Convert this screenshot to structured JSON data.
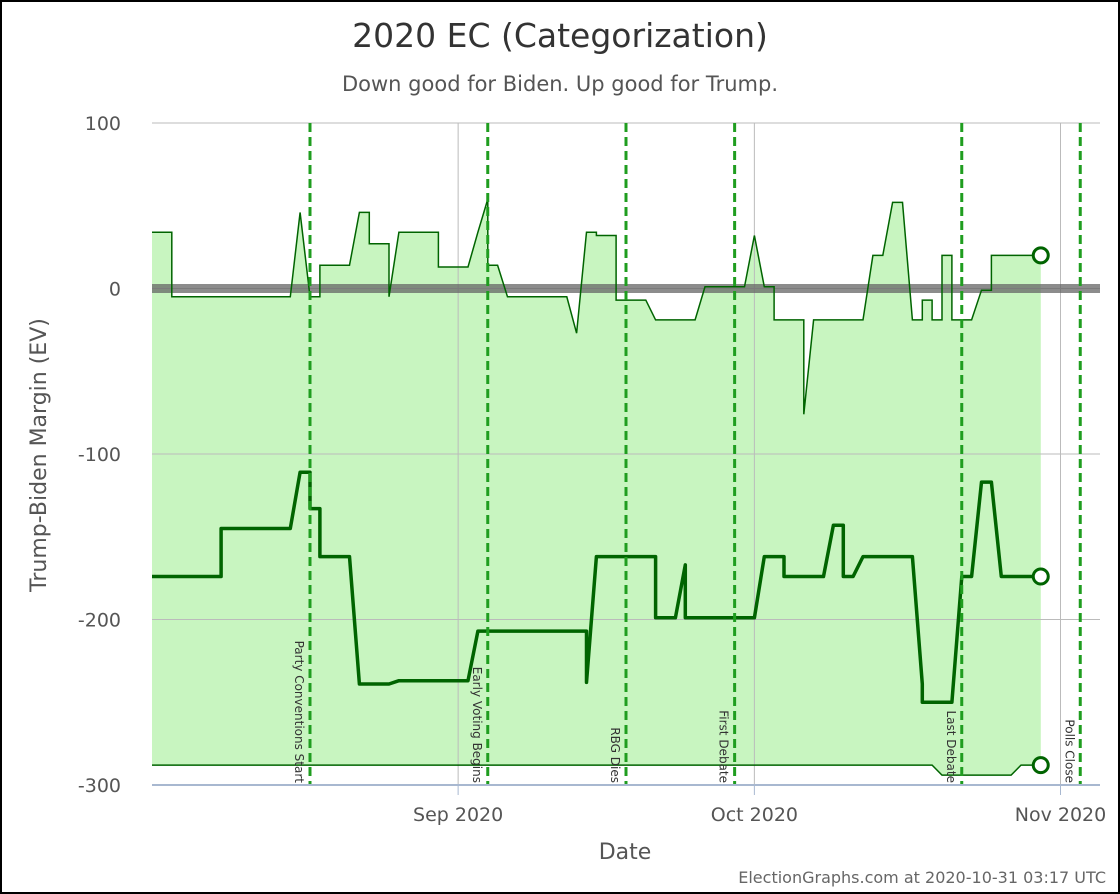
{
  "chart_data": {
    "type": "line",
    "title": "2020 EC (Categorization)",
    "subtitle": "Down good for Biden. Up good for Trump.",
    "xlabel": "Date",
    "ylabel": "Trump-Biden Margin (EV)",
    "ylim": [
      -300,
      100
    ],
    "xlim": [
      "2020-08-01",
      "2020-11-05"
    ],
    "y_ticks": [
      {
        "value": 100,
        "label": "100"
      },
      {
        "value": 0,
        "label": "0"
      },
      {
        "value": -100,
        "label": "-100"
      },
      {
        "value": -200,
        "label": "-200"
      },
      {
        "value": -300,
        "label": "-300"
      }
    ],
    "x_ticks": [
      {
        "date": "2020-09-01",
        "label": "Sep 2020"
      },
      {
        "date": "2020-10-01",
        "label": "Oct 2020"
      },
      {
        "date": "2020-11-01",
        "label": "Nov 2020"
      }
    ],
    "grid": true,
    "zero_line": 0,
    "events": [
      {
        "date": "2020-08-17",
        "label": "Party Conventions Start"
      },
      {
        "date": "2020-09-04",
        "label": "Early Voting Begins"
      },
      {
        "date": "2020-09-18",
        "label": "RBG Dies"
      },
      {
        "date": "2020-09-29",
        "label": "First Debate"
      },
      {
        "date": "2020-10-22",
        "label": "Last Debate"
      },
      {
        "date": "2020-11-03",
        "label": "Polls Close"
      }
    ],
    "series": [
      {
        "role": "upper",
        "values": [
          [
            "2020-08-01",
            34
          ],
          [
            "2020-08-03",
            34
          ],
          [
            "2020-08-03",
            -5
          ],
          [
            "2020-08-15",
            -5
          ],
          [
            "2020-08-16",
            46
          ],
          [
            "2020-08-17",
            -5
          ],
          [
            "2020-08-18",
            -5
          ],
          [
            "2020-08-18",
            14
          ],
          [
            "2020-08-21",
            14
          ],
          [
            "2020-08-22",
            46
          ],
          [
            "2020-08-23",
            46
          ],
          [
            "2020-08-23",
            27
          ],
          [
            "2020-08-25",
            27
          ],
          [
            "2020-08-25",
            -5
          ],
          [
            "2020-08-26",
            34
          ],
          [
            "2020-08-30",
            34
          ],
          [
            "2020-08-30",
            13
          ],
          [
            "2020-09-02",
            13
          ],
          [
            "2020-09-03",
            34
          ],
          [
            "2020-09-04",
            54
          ],
          [
            "2020-09-04",
            14
          ],
          [
            "2020-09-05",
            14
          ],
          [
            "2020-09-06",
            -5
          ],
          [
            "2020-09-12",
            -5
          ],
          [
            "2020-09-13",
            -27
          ],
          [
            "2020-09-14",
            34
          ],
          [
            "2020-09-15",
            34
          ],
          [
            "2020-09-15",
            32
          ],
          [
            "2020-09-17",
            32
          ],
          [
            "2020-09-17",
            -7
          ],
          [
            "2020-09-18",
            -7
          ],
          [
            "2020-09-20",
            -7
          ],
          [
            "2020-09-21",
            -19
          ],
          [
            "2020-09-25",
            -19
          ],
          [
            "2020-09-26",
            1
          ],
          [
            "2020-09-30",
            1
          ],
          [
            "2020-10-01",
            32
          ],
          [
            "2020-10-02",
            1
          ],
          [
            "2020-10-03",
            1
          ],
          [
            "2020-10-03",
            -19
          ],
          [
            "2020-10-06",
            -19
          ],
          [
            "2020-10-06",
            -76
          ],
          [
            "2020-10-07",
            -19
          ],
          [
            "2020-10-12",
            -19
          ],
          [
            "2020-10-13",
            20
          ],
          [
            "2020-10-14",
            20
          ],
          [
            "2020-10-15",
            52
          ],
          [
            "2020-10-16",
            52
          ],
          [
            "2020-10-17",
            -19
          ],
          [
            "2020-10-18",
            -19
          ],
          [
            "2020-10-18",
            -7
          ],
          [
            "2020-10-19",
            -7
          ],
          [
            "2020-10-19",
            -19
          ],
          [
            "2020-10-20",
            -19
          ],
          [
            "2020-10-20",
            20
          ],
          [
            "2020-10-21",
            20
          ],
          [
            "2020-10-21",
            -19
          ],
          [
            "2020-10-22",
            -19
          ],
          [
            "2020-10-23",
            -19
          ],
          [
            "2020-10-24",
            -1
          ],
          [
            "2020-10-25",
            -1
          ],
          [
            "2020-10-25",
            20
          ],
          [
            "2020-10-30",
            20
          ]
        ]
      },
      {
        "role": "expected",
        "values": [
          [
            "2020-08-01",
            -174
          ],
          [
            "2020-08-08",
            -174
          ],
          [
            "2020-08-08",
            -145
          ],
          [
            "2020-08-15",
            -145
          ],
          [
            "2020-08-16",
            -111
          ],
          [
            "2020-08-17",
            -111
          ],
          [
            "2020-08-17",
            -133
          ],
          [
            "2020-08-18",
            -133
          ],
          [
            "2020-08-18",
            -162
          ],
          [
            "2020-08-21",
            -162
          ],
          [
            "2020-08-22",
            -239
          ],
          [
            "2020-08-25",
            -239
          ],
          [
            "2020-08-26",
            -237
          ],
          [
            "2020-09-01",
            -237
          ],
          [
            "2020-09-02",
            -237
          ],
          [
            "2020-09-03",
            -207
          ],
          [
            "2020-09-14",
            -207
          ],
          [
            "2020-09-14",
            -238
          ],
          [
            "2020-09-15",
            -162
          ],
          [
            "2020-09-21",
            -162
          ],
          [
            "2020-09-21",
            -199
          ],
          [
            "2020-09-23",
            -199
          ],
          [
            "2020-09-24",
            -167
          ],
          [
            "2020-09-24",
            -199
          ],
          [
            "2020-10-01",
            -199
          ],
          [
            "2020-10-02",
            -162
          ],
          [
            "2020-10-04",
            -162
          ],
          [
            "2020-10-04",
            -174
          ],
          [
            "2020-10-08",
            -174
          ],
          [
            "2020-10-09",
            -143
          ],
          [
            "2020-10-10",
            -143
          ],
          [
            "2020-10-10",
            -174
          ],
          [
            "2020-10-11",
            -174
          ],
          [
            "2020-10-12",
            -162
          ],
          [
            "2020-10-17",
            -162
          ],
          [
            "2020-10-18",
            -239
          ],
          [
            "2020-10-18",
            -250
          ],
          [
            "2020-10-21",
            -250
          ],
          [
            "2020-10-22",
            -174
          ],
          [
            "2020-10-23",
            -174
          ],
          [
            "2020-10-24",
            -117
          ],
          [
            "2020-10-25",
            -117
          ],
          [
            "2020-10-26",
            -174
          ],
          [
            "2020-10-30",
            -174
          ]
        ]
      },
      {
        "role": "lower",
        "values": [
          [
            "2020-08-01",
            -288
          ],
          [
            "2020-10-19",
            -288
          ],
          [
            "2020-10-20",
            -294
          ],
          [
            "2020-10-27",
            -294
          ],
          [
            "2020-10-28",
            -288
          ],
          [
            "2020-10-30",
            -288
          ]
        ]
      }
    ],
    "current_values": {
      "upper": 20,
      "expected": -174,
      "lower": -288
    },
    "credit": "ElectionGraphs.com at 2020-10-31 03:17 UTC",
    "colors": {
      "band_fill": "#c8f5c0",
      "line": "#006400",
      "event_line": "#1f9d1f",
      "event_line_light": "#44bb44",
      "grid": "#bbbbbb",
      "zero_line": "#666666",
      "axis": "#a8b8d0"
    }
  }
}
